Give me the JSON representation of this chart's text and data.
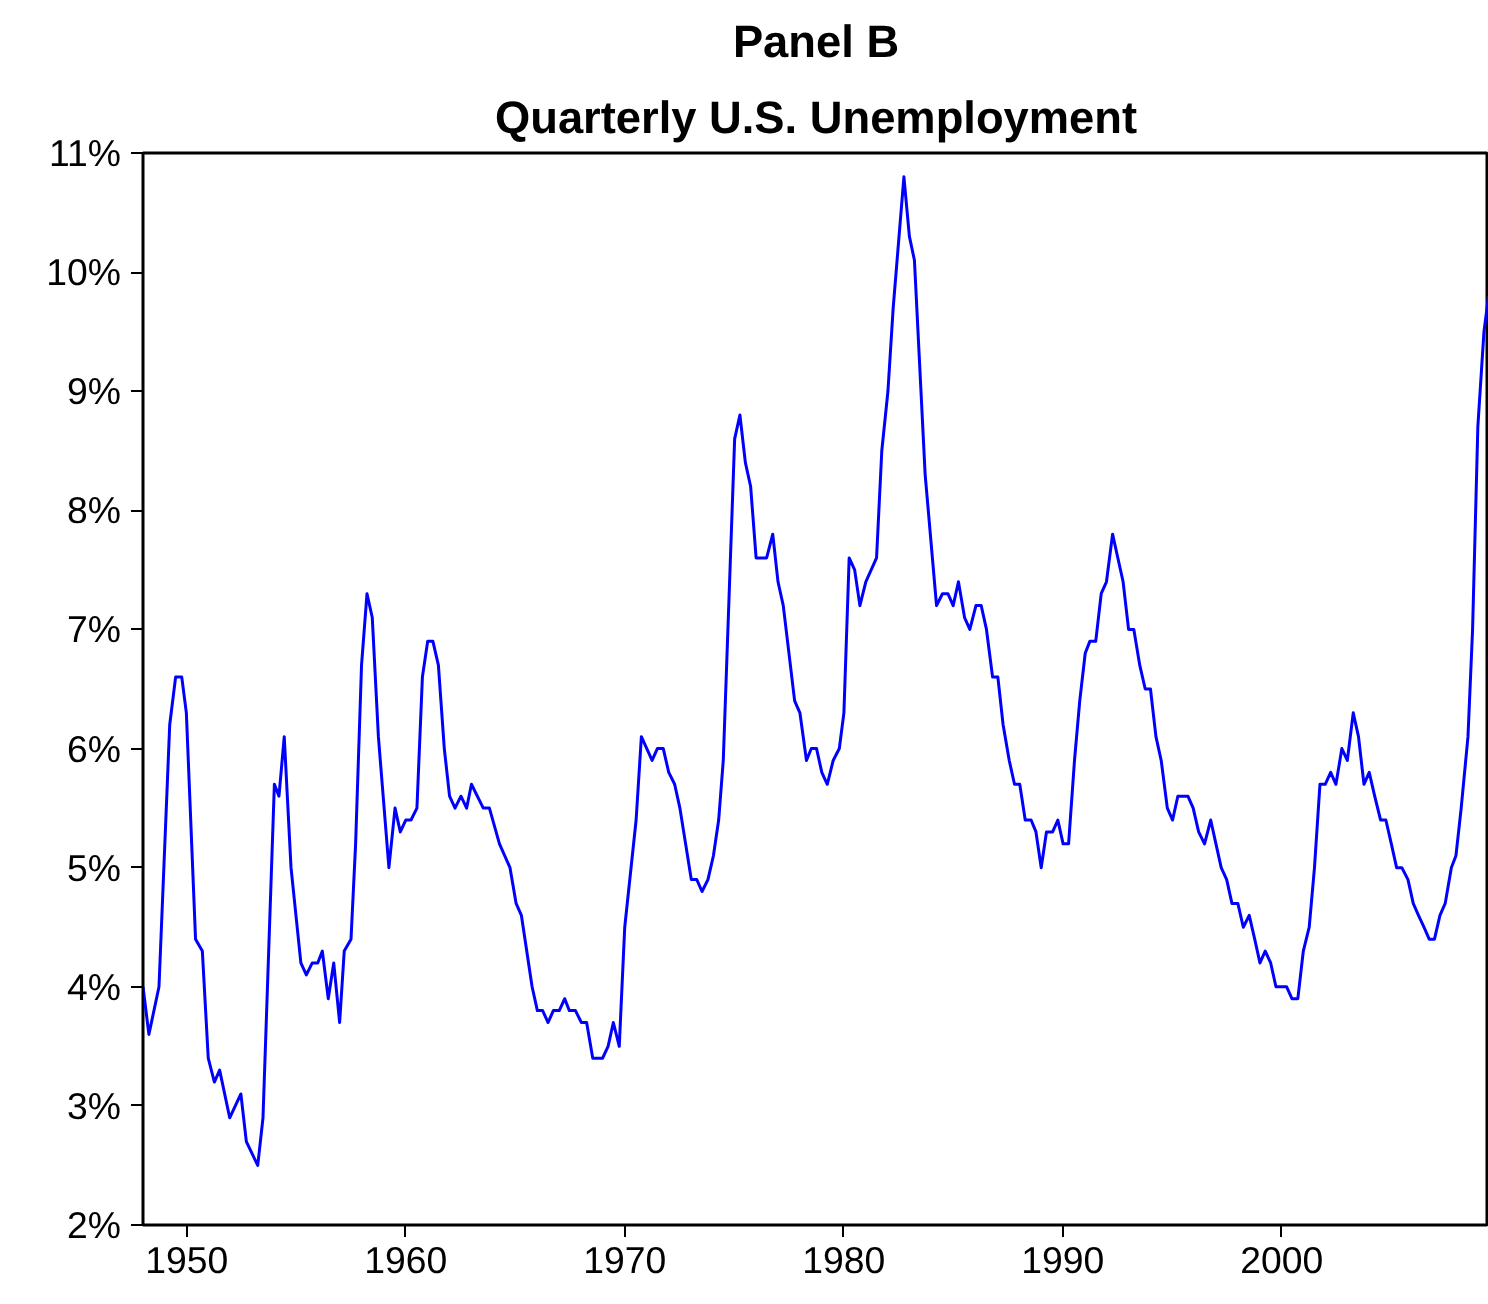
{
  "chart_data": {
    "type": "line",
    "title": "Panel B",
    "subtitle": "Quarterly U.S. Unemployment",
    "x": [
      1948.0,
      1948.27,
      1948.73,
      1949.22,
      1949.49,
      1949.77,
      1949.98,
      1950.4,
      1950.71,
      1950.98,
      1951.26,
      1951.5,
      1951.96,
      1952.47,
      1952.72,
      1953.24,
      1953.48,
      1954.0,
      1954.21,
      1954.45,
      1954.76,
      1955.21,
      1955.46,
      1955.73,
      1955.98,
      1956.19,
      1956.46,
      1956.71,
      1956.98,
      1957.19,
      1957.5,
      1957.71,
      1957.98,
      1958.23,
      1958.47,
      1958.75,
      1959.23,
      1959.51,
      1959.75,
      1960.0,
      1960.24,
      1960.51,
      1960.76,
      1961.0,
      1961.24,
      1961.49,
      1961.76,
      1962.0,
      1962.25,
      1962.52,
      1962.78,
      1963.0,
      1963.54,
      1963.82,
      1964.28,
      1964.76,
      1965.04,
      1965.28,
      1965.77,
      1966.01,
      1966.25,
      1966.5,
      1966.74,
      1967.01,
      1967.26,
      1967.47,
      1967.75,
      1968.02,
      1968.26,
      1968.54,
      1968.99,
      1969.24,
      1969.48,
      1969.75,
      1970.0,
      1970.52,
      1970.76,
      1971.25,
      1971.49,
      1971.76,
      1972.01,
      1972.28,
      1972.52,
      1973.04,
      1973.29,
      1973.53,
      1973.8,
      1974.05,
      1974.29,
      1974.5,
      1975.02,
      1975.26,
      1975.51,
      1975.75,
      1976.0,
      1976.48,
      1976.76,
      1977.0,
      1977.24,
      1977.76,
      1978.0,
      1978.3,
      1978.52,
      1978.76,
      1979.0,
      1979.25,
      1979.52,
      1979.8,
      1980.01,
      1980.25,
      1980.5,
      1980.74,
      1981.01,
      1981.5,
      1981.74,
      1982.02,
      1982.26,
      1982.75,
      1983.0,
      1983.23,
      1983.72,
      1984.24,
      1984.51,
      1984.76,
      1985.0,
      1985.24,
      1985.52,
      1985.76,
      1986.04,
      1986.28,
      1986.52,
      1986.8,
      1987.04,
      1987.28,
      1987.56,
      1987.8,
      1988.04,
      1988.29,
      1988.56,
      1988.78,
      1989.02,
      1989.26,
      1989.54,
      1989.78,
      1990.02,
      1990.27,
      1990.54,
      1990.78,
      1991.03,
      1991.24,
      1991.51,
      1991.76,
      1992.0,
      1992.28,
      1992.52,
      1992.76,
      1993.01,
      1993.25,
      1993.52,
      1993.77,
      1994.01,
      1994.26,
      1994.5,
      1994.78,
      1995.02,
      1995.26,
      1995.72,
      1995.96,
      1996.21,
      1996.48,
      1996.76,
      1997.0,
      1997.24,
      1997.49,
      1997.73,
      1998.0,
      1998.25,
      1998.52,
      1998.77,
      1999.01,
      1999.25,
      1999.5,
      1999.74,
      2000.23,
      2000.47,
      2000.74,
      2000.99,
      2001.26,
      2001.5,
      2001.75,
      2001.99,
      2002.24,
      2002.48,
      2002.75,
      2003.0,
      2003.27,
      2003.51,
      2003.76,
      2004.0,
      2004.25,
      2004.52,
      2004.76,
      2005.01,
      2005.25,
      2005.49,
      2005.77,
      2006.01,
      2006.25,
      2006.5,
      2006.74,
      2006.98,
      2007.23,
      2007.47,
      2007.75,
      2007.96,
      2008.2,
      2008.51,
      2008.72,
      2008.96,
      2009.24,
      2009.45
    ],
    "series": [
      {
        "color": "#0000ff",
        "values": [
          4.0,
          3.6,
          4.0,
          6.2,
          6.6,
          6.6,
          6.3,
          4.4,
          4.3,
          3.4,
          3.2,
          3.3,
          2.9,
          3.1,
          2.7,
          2.5,
          2.9,
          5.7,
          5.6,
          6.1,
          5.0,
          4.2,
          4.1,
          4.2,
          4.2,
          4.3,
          3.9,
          4.2,
          3.7,
          4.3,
          4.4,
          5.2,
          6.7,
          7.3,
          7.1,
          6.1,
          5.0,
          5.5,
          5.3,
          5.4,
          5.4,
          5.5,
          6.6,
          6.9,
          6.9,
          6.7,
          6.0,
          5.6,
          5.5,
          5.6,
          5.5,
          5.7,
          5.5,
          5.5,
          5.2,
          5.0,
          4.7,
          4.6,
          4.0,
          3.8,
          3.8,
          3.7,
          3.8,
          3.8,
          3.9,
          3.8,
          3.8,
          3.7,
          3.7,
          3.4,
          3.4,
          3.5,
          3.7,
          3.5,
          4.5,
          5.4,
          6.1,
          5.9,
          6.0,
          6.0,
          5.8,
          5.7,
          5.5,
          4.9,
          4.9,
          4.8,
          4.9,
          5.1,
          5.4,
          5.9,
          8.6,
          8.8,
          8.4,
          8.2,
          7.6,
          7.6,
          7.8,
          7.4,
          7.2,
          6.4,
          6.3,
          5.9,
          6.0,
          6.0,
          5.8,
          5.7,
          5.9,
          6.0,
          6.3,
          7.6,
          7.5,
          7.2,
          7.4,
          7.6,
          8.5,
          9.0,
          9.7,
          10.8,
          10.3,
          10.1,
          8.3,
          7.2,
          7.3,
          7.3,
          7.2,
          7.4,
          7.1,
          7.0,
          7.2,
          7.2,
          7.0,
          6.6,
          6.6,
          6.2,
          5.9,
          5.7,
          5.7,
          5.4,
          5.4,
          5.3,
          5.0,
          5.3,
          5.3,
          5.4,
          5.2,
          5.2,
          5.9,
          6.4,
          6.8,
          6.9,
          6.9,
          7.3,
          7.4,
          7.8,
          7.6,
          7.4,
          7.0,
          7.0,
          6.7,
          6.5,
          6.5,
          6.1,
          5.9,
          5.5,
          5.4,
          5.6,
          5.6,
          5.5,
          5.3,
          5.2,
          5.4,
          5.2,
          5.0,
          4.9,
          4.7,
          4.7,
          4.5,
          4.6,
          4.4,
          4.2,
          4.3,
          4.2,
          4.0,
          4.0,
          3.9,
          3.9,
          4.3,
          4.5,
          5.0,
          5.7,
          5.7,
          5.8,
          5.7,
          6.0,
          5.9,
          6.3,
          6.1,
          5.7,
          5.8,
          5.6,
          5.4,
          5.4,
          5.2,
          5.0,
          5.0,
          4.9,
          4.7,
          4.6,
          4.5,
          4.4,
          4.4,
          4.6,
          4.7,
          5.0,
          5.1,
          5.5,
          6.1,
          7.0,
          8.7,
          9.5,
          9.8
        ]
      }
    ],
    "xlim": [
      1948.0,
      2009.47
    ],
    "xticks": [
      1950,
      1960,
      1970,
      1980,
      1990,
      2000
    ],
    "ylim": [
      2,
      11
    ],
    "yticks": [
      {
        "value": 2,
        "label": "2%"
      },
      {
        "value": 3,
        "label": "3%"
      },
      {
        "value": 4,
        "label": "4%"
      },
      {
        "value": 5,
        "label": "5%"
      },
      {
        "value": 6,
        "label": "6%"
      },
      {
        "value": 7,
        "label": "7%"
      },
      {
        "value": 8,
        "label": "8%"
      },
      {
        "value": 9,
        "label": "9%"
      },
      {
        "value": 10,
        "label": "10%"
      },
      {
        "value": 11,
        "label": "11%"
      }
    ],
    "grid": false,
    "marker": "none",
    "line_style": "solid"
  }
}
